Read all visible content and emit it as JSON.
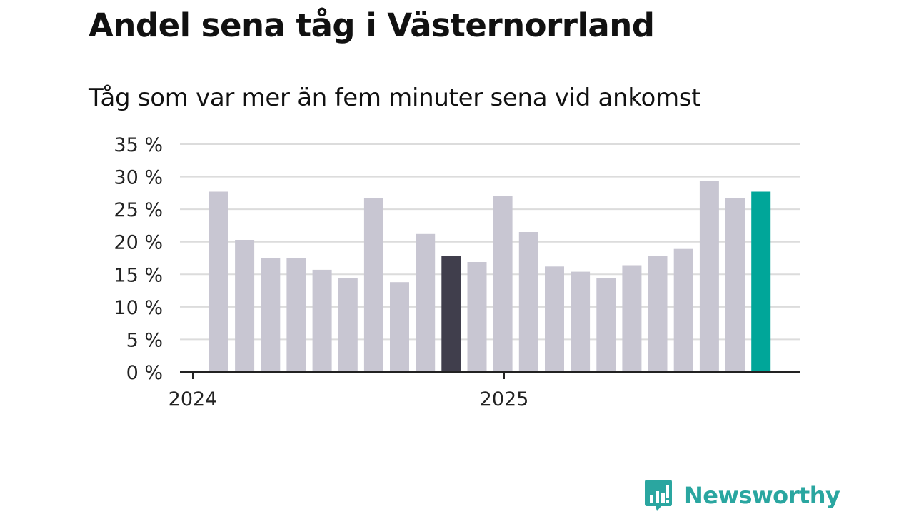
{
  "title": "Andel sena tåg i Västernorrland",
  "subtitle": "Tåg som var mer än fem minuter sena vid ankomst",
  "colors": {
    "bar": "#c8c6d2",
    "highlight_dark": "#403e4c",
    "highlight_latest": "#00a699",
    "grid": "#dcdcdc",
    "axis": "#222222",
    "brand": "#2aa6a0"
  },
  "logo": {
    "text": "Newsworthy",
    "icon": "newsworthy-chart-bubble-icon"
  },
  "chart_data": {
    "type": "bar",
    "ylim": [
      0,
      35
    ],
    "yticks": [
      0,
      5,
      10,
      15,
      20,
      25,
      30,
      35
    ],
    "ytick_labels": [
      "0 %",
      "5 %",
      "10 %",
      "15 %",
      "20 %",
      "25 %",
      "30 %",
      "35 %"
    ],
    "grid": true,
    "x_tick_labels": [
      {
        "label": "2024",
        "at_index": 0
      },
      {
        "label": "2025",
        "at_index": 12
      }
    ],
    "values": [
      27.7,
      20.3,
      17.5,
      17.5,
      15.7,
      14.4,
      26.7,
      13.8,
      21.2,
      17.8,
      16.9,
      27.1,
      21.5,
      16.2,
      15.4,
      14.4,
      16.4,
      17.8,
      18.9,
      29.4,
      26.7,
      27.7
    ],
    "highlight_dark_index": 9,
    "highlight_latest_index": 21
  }
}
